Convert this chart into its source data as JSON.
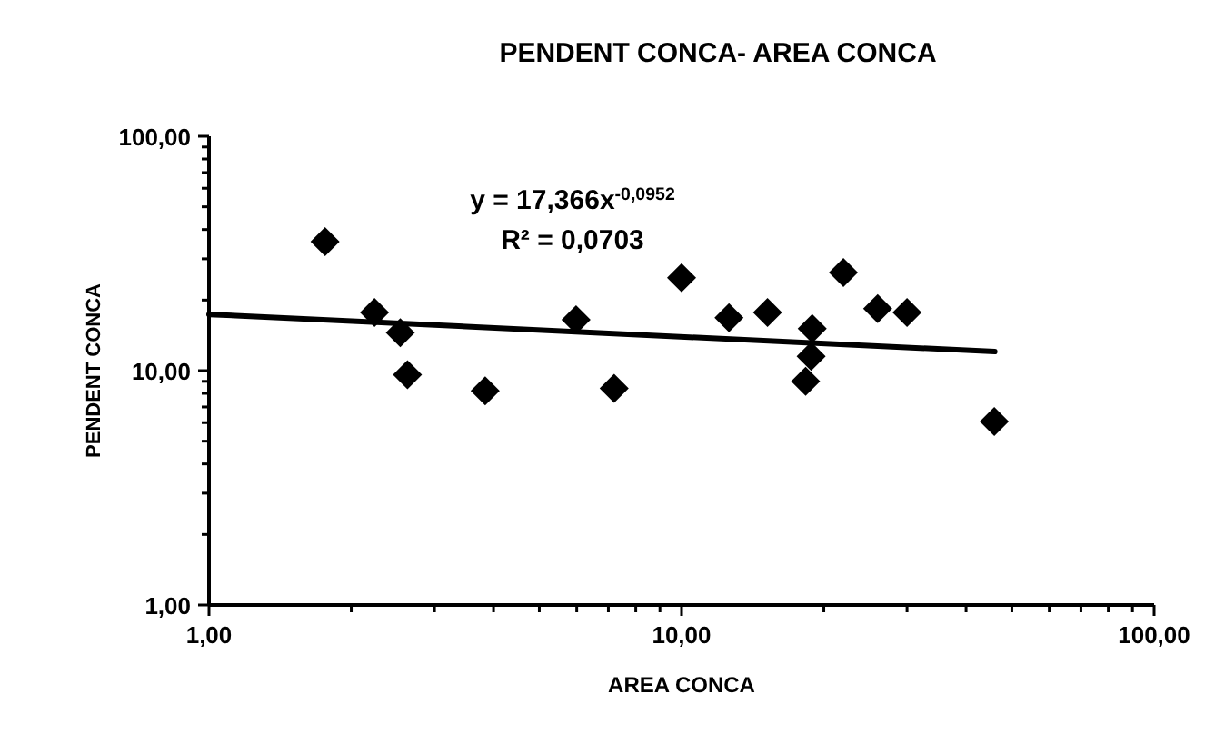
{
  "chart_data": {
    "type": "scatter",
    "title": "PENDENT CONCA- AREA CONCA",
    "xlabel": "AREA CONCA",
    "ylabel": "PENDENT CONCA",
    "log": "xy",
    "grid": false,
    "xlim": [
      1,
      100
    ],
    "ylim": [
      1,
      100
    ],
    "xticks": [
      {
        "value": 1,
        "label": "1,00"
      },
      {
        "value": 2,
        "label": null
      },
      {
        "value": 3,
        "label": null
      },
      {
        "value": 4,
        "label": null
      },
      {
        "value": 5,
        "label": null
      },
      {
        "value": 6,
        "label": null
      },
      {
        "value": 7,
        "label": null
      },
      {
        "value": 8,
        "label": null
      },
      {
        "value": 9,
        "label": null
      },
      {
        "value": 10,
        "label": "10,00"
      },
      {
        "value": 20,
        "label": null
      },
      {
        "value": 30,
        "label": null
      },
      {
        "value": 40,
        "label": null
      },
      {
        "value": 50,
        "label": null
      },
      {
        "value": 60,
        "label": null
      },
      {
        "value": 70,
        "label": null
      },
      {
        "value": 80,
        "label": null
      },
      {
        "value": 90,
        "label": null
      },
      {
        "value": 100,
        "label": "100,00"
      }
    ],
    "yticks": [
      {
        "value": 1,
        "label": "1,00"
      },
      {
        "value": 2,
        "label": null
      },
      {
        "value": 3,
        "label": null
      },
      {
        "value": 4,
        "label": null
      },
      {
        "value": 5,
        "label": null
      },
      {
        "value": 6,
        "label": null
      },
      {
        "value": 7,
        "label": null
      },
      {
        "value": 8,
        "label": null
      },
      {
        "value": 9,
        "label": null
      },
      {
        "value": 10,
        "label": "10,00"
      },
      {
        "value": 20,
        "label": null
      },
      {
        "value": 30,
        "label": null
      },
      {
        "value": 40,
        "label": null
      },
      {
        "value": 50,
        "label": null
      },
      {
        "value": 60,
        "label": null
      },
      {
        "value": 70,
        "label": null
      },
      {
        "value": 80,
        "label": null
      },
      {
        "value": 90,
        "label": null
      },
      {
        "value": 100,
        "label": "100,00"
      }
    ],
    "series": [
      {
        "color": "#000000",
        "marker": "diamond",
        "x": [
          1.76,
          2.24,
          2.54,
          2.63,
          3.84,
          5.98,
          7.2,
          10,
          12.6,
          15.2,
          18.9,
          18.8,
          18.3,
          22,
          26,
          30,
          45.9
        ],
        "values": [
          35.5,
          17.7,
          14.5,
          9.6,
          8.2,
          16.5,
          8.4,
          24.9,
          16.8,
          17.7,
          15.1,
          11.5,
          9,
          26.2,
          18.4,
          17.7,
          6.07
        ]
      },
      {
        "type": "line",
        "color": "#000000",
        "x": [
          1,
          46
        ],
        "values": [
          17.37,
          12.06
        ],
        "line_style": "solid",
        "marker": "none"
      }
    ],
    "annotations": [
      {
        "text": "y =  17,366x$^{-0,0952}$"
      },
      {
        "text": "R² =  0,0703"
      }
    ]
  }
}
